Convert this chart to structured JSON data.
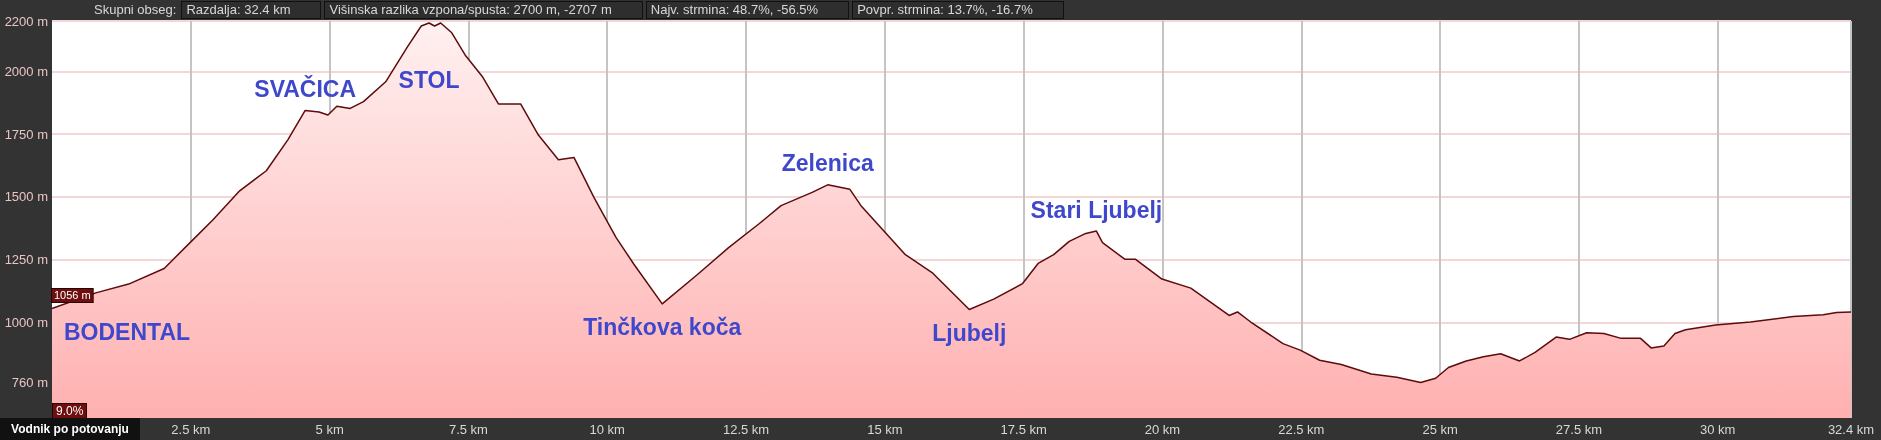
{
  "chart_data": {
    "type": "area",
    "x": [
      0,
      0.79,
      1.38,
      2.02,
      2.5,
      2.9,
      3.38,
      3.86,
      4.25,
      4.56,
      4.81,
      4.97,
      5.13,
      5.37,
      5.61,
      6.01,
      6.41,
      6.65,
      6.79,
      6.89,
      7.0,
      7.2,
      7.44,
      7.76,
      8.04,
      8.44,
      8.76,
      9.12,
      9.4,
      9.76,
      10.16,
      10.48,
      10.99,
      11.62,
      12.18,
      12.74,
      13.13,
      13.69,
      13.97,
      14.37,
      14.57,
      14.97,
      15.37,
      15.85,
      16.52,
      16.96,
      17.48,
      17.76,
      18.04,
      18.32,
      18.6,
      18.81,
      18.92,
      19.32,
      19.51,
      19.99,
      20.51,
      21.2,
      21.35,
      21.59,
      22.17,
      22.48,
      22.83,
      23.22,
      23.76,
      24.22,
      24.65,
      24.92,
      25.15,
      25.47,
      25.78,
      26.09,
      26.43,
      26.71,
      27.09,
      27.33,
      27.64,
      27.95,
      28.26,
      28.61,
      28.8,
      29.03,
      29.23,
      29.42,
      29.96,
      30.59,
      31.36,
      31.9,
      32.14,
      32.4
    ],
    "series": [
      {
        "color": "#5e0b0b",
        "values": [
          1056,
          1118,
          1153,
          1215,
          1321,
          1409,
          1524,
          1604,
          1728,
          1844,
          1838,
          1826,
          1861,
          1852,
          1879,
          1958,
          2100,
          2180,
          2192,
          2180,
          2192,
          2153,
          2065,
          1976,
          1870,
          1870,
          1746,
          1648,
          1657,
          1498,
          1338,
          1232,
          1074,
          1190,
          1297,
          1394,
          1465,
          1518,
          1548,
          1530,
          1465,
          1367,
          1270,
          1199,
          1052,
          1093,
          1155,
          1235,
          1270,
          1323,
          1353,
          1364,
          1318,
          1252,
          1252,
          1173,
          1137,
          1028,
          1042,
          1002,
          916,
          890,
          850,
          833,
          795,
          782,
          761,
          778,
          821,
          847,
          864,
          876,
          847,
          881,
          942,
          933,
          959,
          956,
          937,
          937,
          899,
          907,
          956,
          971,
          990,
          1002,
          1024,
          1031,
          1040,
          1042
        ],
        "value_labels": [
          "1056 m",
          null,
          null,
          null,
          null,
          null,
          null,
          null,
          null,
          null,
          null,
          null,
          null,
          null,
          null,
          null,
          null,
          null,
          null,
          null,
          null,
          null,
          null,
          null,
          null,
          null,
          null,
          null,
          null,
          null,
          null,
          null,
          null,
          null,
          null,
          null,
          null,
          null,
          null,
          null,
          null,
          null,
          null,
          null,
          null,
          null,
          null,
          null,
          null,
          null,
          null,
          null,
          null,
          null,
          null,
          null,
          null,
          null,
          null,
          null,
          null,
          null,
          null,
          null,
          null,
          null,
          null,
          null,
          null,
          null,
          null,
          null,
          null,
          null,
          null,
          null,
          null,
          null,
          null,
          null,
          null,
          null,
          null,
          null,
          null,
          null,
          null,
          null,
          null,
          null
        ]
      }
    ],
    "xlim": [
      0,
      32.4
    ],
    "xticks": [
      {
        "value": 2.5,
        "label": "2.5 km"
      },
      {
        "value": 5,
        "label": "5 km"
      },
      {
        "value": 7.5,
        "label": "7.5 km"
      },
      {
        "value": 10,
        "label": "10 km"
      },
      {
        "value": 12.5,
        "label": "12.5 km"
      },
      {
        "value": 15,
        "label": "15 km"
      },
      {
        "value": 17.5,
        "label": "17.5 km"
      },
      {
        "value": 20,
        "label": "20 km"
      },
      {
        "value": 22.5,
        "label": "22.5 km"
      },
      {
        "value": 25,
        "label": "25 km"
      },
      {
        "value": 27.5,
        "label": "27.5 km"
      },
      {
        "value": 30,
        "label": "30 km"
      },
      {
        "value": 32.4,
        "label": "32.4 km"
      }
    ],
    "ylim": [
      620,
      2200
    ],
    "yticks": [
      {
        "value": 760,
        "label": "760 m"
      },
      {
        "value": 1000,
        "label": "1000 m"
      },
      {
        "value": 1250,
        "label": "1250 m"
      },
      {
        "value": 1500,
        "label": "1500 m"
      },
      {
        "value": 1750,
        "label": "1750 m"
      },
      {
        "value": 2000,
        "label": "2000 m"
      },
      {
        "value": 2200,
        "label": "2200 m"
      }
    ],
    "grid": true,
    "annotations": [
      "Skupni obseg:",
      "Razdalja: 32.4 km",
      "Višinska razlika vzpona/spusta: 2700 m, -2707 m",
      "Najv. strmina: 48.7%, -56.5%",
      "Povpr. strmina: 13.7%, -16.7%",
      "9.0%",
      "Vodnik po potovanju",
      {
        "text": "BODENTAL",
        "x": 0,
        "y": 1056
      },
      {
        "text": "SVAČICA",
        "x": 4.56,
        "y": 1844
      },
      {
        "text": "STOL",
        "x": 6.79,
        "y": 2192
      },
      {
        "text": "Tinčkova koča",
        "x": 10.99,
        "y": 1074
      },
      {
        "text": "Zelenica",
        "x": 13.97,
        "y": 1548
      },
      {
        "text": "Ljubelj",
        "x": 16.52,
        "y": 1052
      },
      {
        "text": "Stari Ljubelj",
        "x": 18.81,
        "y": 1364
      }
    ]
  }
}
